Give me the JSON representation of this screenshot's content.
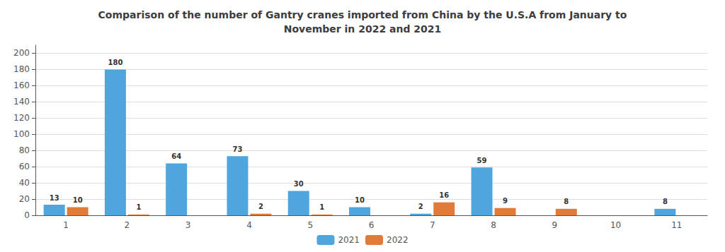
{
  "chart_data": {
    "type": "bar",
    "title": "Comparison of the number of Gantry cranes imported from China by the U.S.A from January to\nNovember in 2022 and 2021",
    "categories": [
      "1",
      "2",
      "3",
      "4",
      "5",
      "6",
      "7",
      "8",
      "9",
      "10",
      "11"
    ],
    "series": [
      {
        "name": "2021",
        "color": "#4ea6dc",
        "values": [
          13,
          180,
          64,
          73,
          30,
          10,
          2,
          59,
          0,
          0,
          8
        ],
        "value_labels": [
          "13",
          "180",
          "64",
          "73",
          "30",
          "10",
          "2",
          "59",
          null,
          null,
          "8"
        ]
      },
      {
        "name": "2022",
        "color": "#e07b39",
        "values": [
          10,
          1,
          0,
          2,
          1,
          0,
          16,
          9,
          8,
          0,
          0
        ],
        "value_labels": [
          "10",
          "1",
          null,
          "2",
          "1",
          null,
          "16",
          "9",
          "8",
          null,
          null
        ]
      }
    ],
    "ylim": [
      0,
      210
    ],
    "yticks": [
      0,
      20,
      40,
      60,
      80,
      100,
      120,
      140,
      160,
      180,
      200
    ],
    "grid": true,
    "legend": "bottom",
    "data_labels": true
  }
}
